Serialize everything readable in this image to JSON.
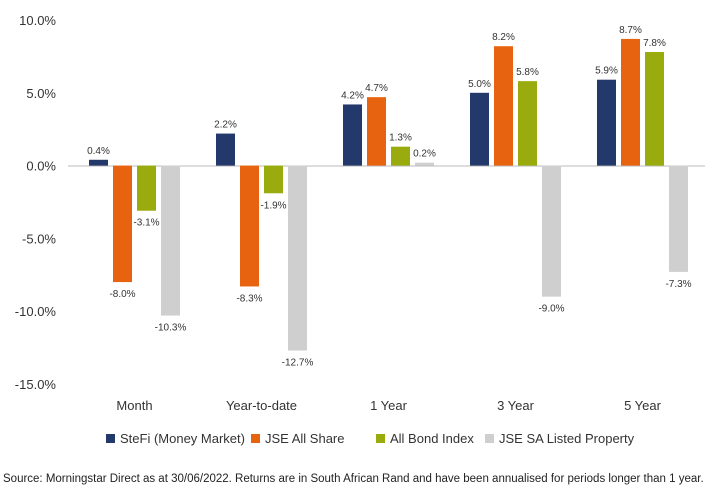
{
  "chart_data": {
    "type": "bar",
    "categories": [
      "Month",
      "Year-to-date",
      "1 Year",
      "3 Year",
      "5 Year"
    ],
    "series": [
      {
        "name": "SteFi (Money Market)",
        "color": "#24396b",
        "values": [
          0.4,
          2.2,
          4.2,
          5.0,
          5.9
        ],
        "labels": [
          "0.4%",
          "2.2%",
          "4.2%",
          "5.0%",
          "5.9%"
        ]
      },
      {
        "name": "JSE All Share",
        "color": "#e8630f",
        "values": [
          -8.0,
          -8.3,
          4.7,
          8.2,
          8.7
        ],
        "labels": [
          "-8.0%",
          "-8.3%",
          "4.7%",
          "8.2%",
          "8.7%"
        ]
      },
      {
        "name": "All Bond Index",
        "color": "#9aab0d",
        "values": [
          -3.1,
          -1.9,
          1.3,
          5.8,
          7.8
        ],
        "labels": [
          "-3.1%",
          "-1.9%",
          "1.3%",
          "5.8%",
          "7.8%"
        ]
      },
      {
        "name": "JSE SA Listed Property",
        "color": "#cfcfcf",
        "values": [
          -10.3,
          -12.7,
          0.2,
          -9.0,
          -7.3
        ],
        "labels": [
          "-10.3%",
          "-12.7%",
          "0.2%",
          "-9.0%",
          "-7.3%"
        ]
      }
    ],
    "ylim": [
      -15,
      10
    ],
    "yticks": [
      10,
      5,
      0,
      -5,
      -10,
      -15
    ],
    "ytick_labels": [
      "10.0%",
      "5.0%",
      "0.0%",
      "-5.0%",
      "-10.0%",
      "-15.0%"
    ],
    "grid": false,
    "legend": "bottom"
  },
  "source_note": "Source: Morningstar Direct as at 30/06/2022. Returns are in South African Rand and have been annualised for periods longer than 1 year."
}
